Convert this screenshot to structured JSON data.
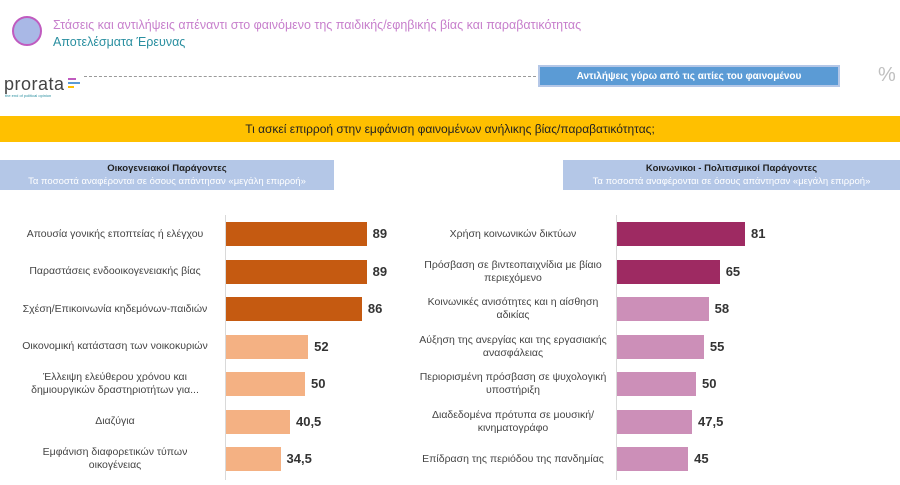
{
  "header": {
    "title": "Στάσεις και αντιλήψεις απέναντι στο φαινόμενο της παιδικής/εφηβικής βίας και παραβατικότητας",
    "subtitle": "Αποτελέσματα Έρευνας"
  },
  "brand": {
    "name": "prorata",
    "tagline": "the end of political opinion"
  },
  "topic_box": "Αντιλήψεις γύρω από τις αιτίες του φαινομένου",
  "percent_symbol": "%",
  "question": "Τι ασκεί επιρροή στην εμφάνιση φαινομένων ανήλικης βίας/παραβατικότητας;",
  "chart_data": [
    {
      "type": "bar",
      "orientation": "horizontal",
      "title": "Οικογενειακοί Παράγοντες",
      "subtitle": "Τα ποσοστά αναφέρονται σε όσους απάντησαν «μεγάλη επιρροή»",
      "categories": [
        "Απουσία γονικής εποπτείας ή ελέγχου",
        "Παραστάσεις ενδοοικογενειακής βίας",
        "Σχέση/Επικοινωνία κηδεμόνων-παιδιών",
        "Οικονομική κατάσταση των νοικοκυριών",
        "Έλλειψη ελεύθερου χρόνου και δημιουργικών δραστηριοτήτων για...",
        "Διαζύγια",
        "Εμφάνιση διαφορετικών τύπων οικογένειας"
      ],
      "values": [
        89,
        89,
        86,
        52,
        50,
        40.5,
        34.5
      ],
      "value_labels": [
        "89",
        "89",
        "86",
        "52",
        "50",
        "40,5",
        "34,5"
      ],
      "colors": [
        "#c55a11",
        "#c55a11",
        "#c55a11",
        "#f4b183",
        "#f4b183",
        "#f4b183",
        "#f4b183"
      ],
      "xlim": [
        0,
        100
      ]
    },
    {
      "type": "bar",
      "orientation": "horizontal",
      "title": "Κοινωνικοι - Πολιτισμικοί Παράγοντες",
      "subtitle": "Τα ποσοστά αναφέρονται σε όσους απάντησαν «μεγάλη επιρροή»",
      "categories": [
        "Χρήση κοινωνικών δικτύων",
        "Πρόσβαση σε βιντεοπαιχνίδια με βίαιο περιεχόμενο",
        "Κοινωνικές ανισότητες και η αίσθηση αδικίας",
        "Αύξηση της ανεργίας και της εργασιακής ανασφάλειας",
        "Περιορισμένη πρόσβαση σε ψυχολογική υποστήριξη",
        "Διαδεδομένα πρότυπα σε μουσική/κινηματογράφο",
        "Επίδραση της περιόδου της πανδημίας"
      ],
      "values": [
        81,
        65,
        58,
        55,
        50,
        47.5,
        45
      ],
      "value_labels": [
        "81",
        "65",
        "58",
        "55",
        "50",
        "47,5",
        "45"
      ],
      "colors": [
        "#9e2a62",
        "#9e2a62",
        "#cc8fb8",
        "#cc8fb8",
        "#cc8fb8",
        "#cc8fb8",
        "#cc8fb8"
      ],
      "xlim": [
        0,
        100
      ]
    }
  ]
}
